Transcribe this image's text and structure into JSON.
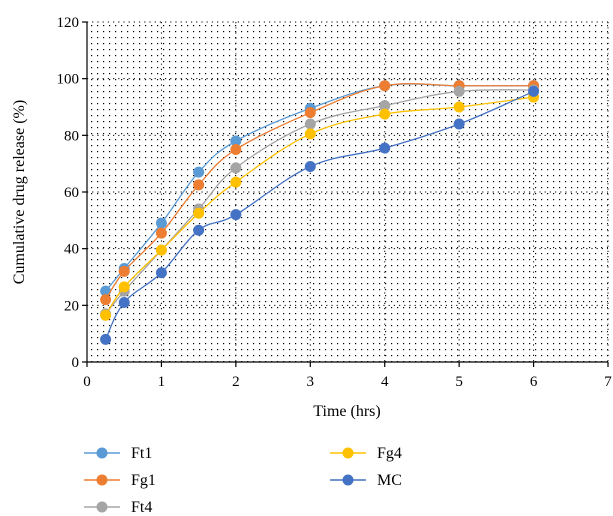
{
  "chart_data": {
    "type": "line",
    "xlabel": "Time (hrs)",
    "ylabel": "Cumulative drug release (%)",
    "xlim": [
      0,
      7
    ],
    "ylim": [
      0,
      120
    ],
    "xticks": [
      0,
      1,
      2,
      3,
      4,
      5,
      6,
      7
    ],
    "yticks": [
      0,
      20,
      40,
      60,
      80,
      100,
      120
    ],
    "grid": "dotted",
    "legend_position": "bottom",
    "x": [
      0.25,
      0.5,
      1,
      1.5,
      2,
      3,
      4,
      5,
      6
    ],
    "series": [
      {
        "name": "Ft1",
        "color": "#5b9bd5",
        "values": [
          25,
          33,
          49,
          67,
          78,
          89.5,
          97.5,
          97.5,
          97.5
        ]
      },
      {
        "name": "Fg1",
        "color": "#ed7d31",
        "values": [
          22,
          32,
          45.5,
          62.5,
          75,
          88,
          97.5,
          97.5,
          97.5
        ]
      },
      {
        "name": "Ft4",
        "color": "#a5a5a5",
        "values": [
          17,
          25,
          39.5,
          54,
          68.5,
          84,
          90.5,
          95.5,
          96
        ]
      },
      {
        "name": "Fg4",
        "color": "#ffc000",
        "values": [
          16.5,
          26.5,
          39.5,
          52.5,
          63.5,
          80.5,
          87.5,
          90,
          93.5
        ]
      },
      {
        "name": "MC",
        "color": "#4472c4",
        "values": [
          8,
          21,
          31.5,
          46.5,
          52,
          69,
          75.5,
          84,
          95.5
        ]
      }
    ]
  }
}
